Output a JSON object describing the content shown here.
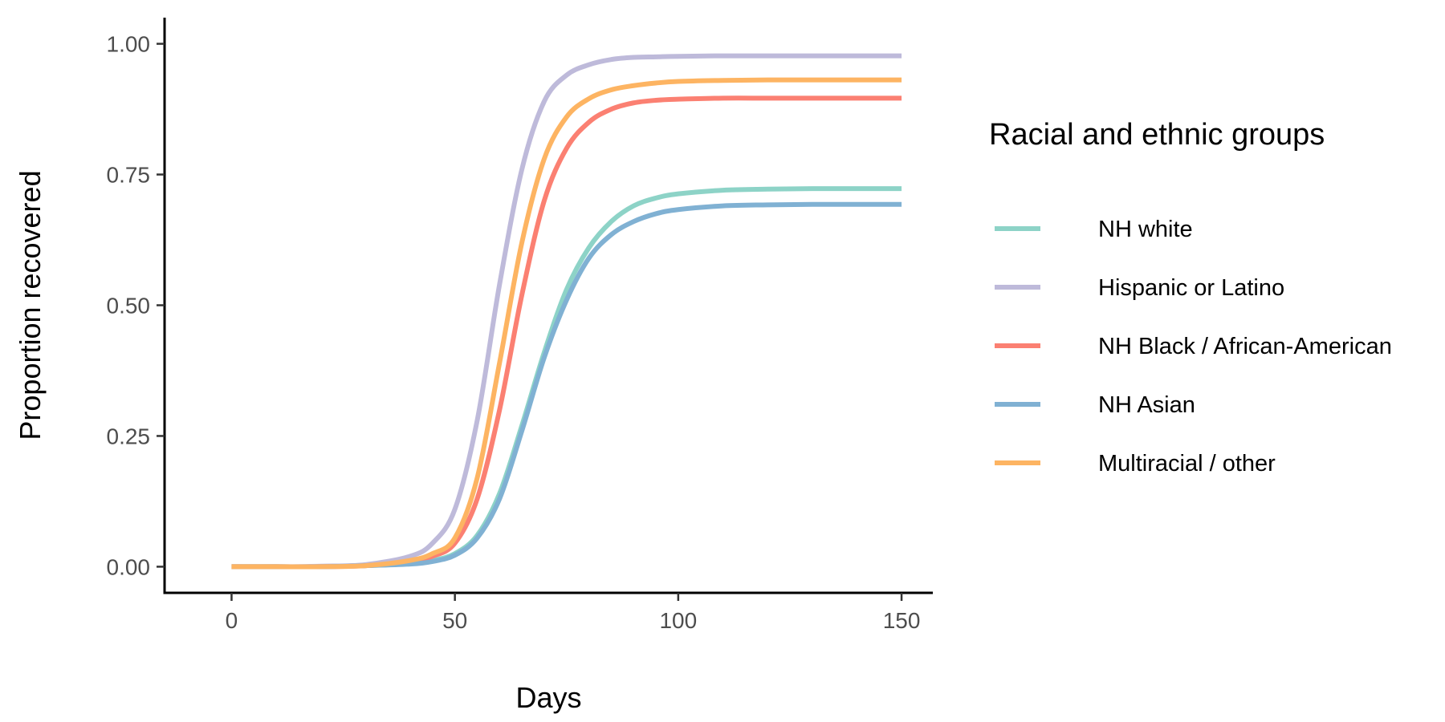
{
  "chart_data": {
    "type": "line",
    "xlabel": "Days",
    "ylabel": "Proportion recovered",
    "xlim": [
      -15,
      157
    ],
    "ylim": [
      -0.05,
      1.05
    ],
    "x_ticks": [
      0,
      50,
      100,
      150
    ],
    "x_tick_labels": [
      "0",
      "50",
      "100",
      "150"
    ],
    "y_ticks": [
      0,
      0.25,
      0.5,
      0.75,
      1.0
    ],
    "y_tick_labels": [
      "0.00",
      "0.25",
      "0.50",
      "0.75",
      "1.00"
    ],
    "grid": false,
    "legend": {
      "title": "Racial and ethnic groups",
      "position": "right"
    },
    "x": [
      0,
      10,
      20,
      30,
      40,
      45,
      50,
      55,
      60,
      65,
      70,
      75,
      80,
      85,
      90,
      95,
      100,
      110,
      120,
      130,
      140,
      150
    ],
    "series": [
      {
        "name": "NH white",
        "color": "#8dd3c7",
        "values": [
          0.0,
          0.0,
          0.0,
          0.002,
          0.006,
          0.012,
          0.025,
          0.06,
          0.14,
          0.27,
          0.41,
          0.53,
          0.61,
          0.66,
          0.69,
          0.705,
          0.713,
          0.72,
          0.722,
          0.723,
          0.723,
          0.723
        ]
      },
      {
        "name": "Hispanic or Latino",
        "color": "#bebada",
        "values": [
          0.0,
          0.0,
          0.001,
          0.004,
          0.02,
          0.045,
          0.11,
          0.28,
          0.54,
          0.76,
          0.89,
          0.94,
          0.96,
          0.97,
          0.974,
          0.975,
          0.976,
          0.977,
          0.977,
          0.977,
          0.977,
          0.977
        ]
      },
      {
        "name": "NH Black / African-American",
        "color": "#fb8072",
        "values": [
          0.0,
          0.0,
          0.0,
          0.002,
          0.01,
          0.02,
          0.045,
          0.13,
          0.3,
          0.52,
          0.7,
          0.8,
          0.85,
          0.875,
          0.887,
          0.892,
          0.894,
          0.896,
          0.896,
          0.896,
          0.896,
          0.896
        ]
      },
      {
        "name": "NH Asian",
        "color": "#80b1d3",
        "values": [
          0.0,
          0.0,
          0.0,
          0.002,
          0.005,
          0.01,
          0.022,
          0.055,
          0.13,
          0.26,
          0.4,
          0.51,
          0.59,
          0.635,
          0.66,
          0.675,
          0.683,
          0.69,
          0.692,
          0.693,
          0.693,
          0.693
        ]
      },
      {
        "name": "Multiracial / other",
        "color": "#fdb462",
        "values": [
          0.0,
          0.0,
          0.0,
          0.002,
          0.012,
          0.025,
          0.055,
          0.17,
          0.39,
          0.62,
          0.78,
          0.86,
          0.895,
          0.912,
          0.92,
          0.925,
          0.928,
          0.93,
          0.931,
          0.931,
          0.931,
          0.931
        ]
      }
    ]
  }
}
